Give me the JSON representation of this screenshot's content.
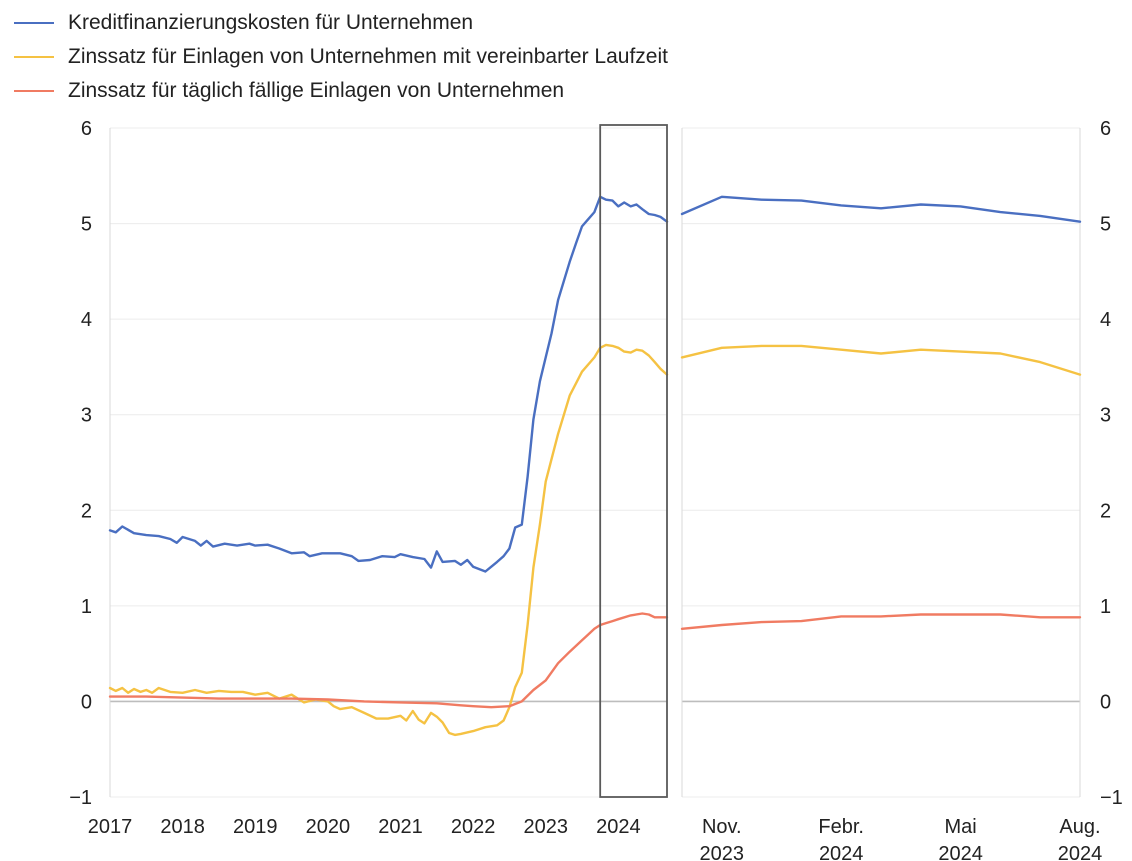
{
  "chart_data": [
    {
      "type": "line",
      "panel": "left",
      "x_unit": "year",
      "xlim": [
        2017,
        2024.67
      ],
      "ylim": [
        -1,
        6
      ],
      "y_ticks": [
        -1,
        0,
        1,
        2,
        3,
        4,
        5,
        6
      ],
      "y_tick_labels": [
        "−1",
        "0",
        "1",
        "2",
        "3",
        "4",
        "5",
        "6"
      ],
      "x_ticks": [
        2017,
        2018,
        2019,
        2020,
        2021,
        2022,
        2023,
        2024
      ],
      "x_tick_labels": [
        "2017",
        "2018",
        "2019",
        "2020",
        "2021",
        "2022",
        "2023",
        "2024"
      ],
      "grid": true,
      "highlight_box": {
        "x_from": 2023.75,
        "x_to": 2024.67
      },
      "series": [
        {
          "name": "Kreditfinanzierungskosten für Unternehmen",
          "color": "#4a6fc1",
          "points": [
            [
              2017.0,
              1.79
            ],
            [
              2017.08,
              1.77
            ],
            [
              2017.17,
              1.83
            ],
            [
              2017.33,
              1.76
            ],
            [
              2017.5,
              1.74
            ],
            [
              2017.67,
              1.73
            ],
            [
              2017.83,
              1.7
            ],
            [
              2017.92,
              1.66
            ],
            [
              2018.0,
              1.72
            ],
            [
              2018.17,
              1.68
            ],
            [
              2018.25,
              1.63
            ],
            [
              2018.33,
              1.68
            ],
            [
              2018.42,
              1.62
            ],
            [
              2018.58,
              1.65
            ],
            [
              2018.75,
              1.63
            ],
            [
              2018.92,
              1.65
            ],
            [
              2019.0,
              1.63
            ],
            [
              2019.17,
              1.64
            ],
            [
              2019.33,
              1.6
            ],
            [
              2019.5,
              1.55
            ],
            [
              2019.67,
              1.56
            ],
            [
              2019.75,
              1.52
            ],
            [
              2019.92,
              1.55
            ],
            [
              2020.17,
              1.55
            ],
            [
              2020.33,
              1.52
            ],
            [
              2020.42,
              1.47
            ],
            [
              2020.58,
              1.48
            ],
            [
              2020.75,
              1.52
            ],
            [
              2020.92,
              1.51
            ],
            [
              2021.0,
              1.54
            ],
            [
              2021.17,
              1.51
            ],
            [
              2021.33,
              1.49
            ],
            [
              2021.42,
              1.4
            ],
            [
              2021.5,
              1.57
            ],
            [
              2021.58,
              1.46
            ],
            [
              2021.75,
              1.47
            ],
            [
              2021.83,
              1.43
            ],
            [
              2021.92,
              1.48
            ],
            [
              2022.0,
              1.41
            ],
            [
              2022.17,
              1.36
            ],
            [
              2022.25,
              1.41
            ],
            [
              2022.33,
              1.46
            ],
            [
              2022.42,
              1.52
            ],
            [
              2022.5,
              1.6
            ],
            [
              2022.58,
              1.82
            ],
            [
              2022.67,
              1.85
            ],
            [
              2022.75,
              2.35
            ],
            [
              2022.83,
              2.95
            ],
            [
              2022.92,
              3.35
            ],
            [
              2023.0,
              3.6
            ],
            [
              2023.08,
              3.85
            ],
            [
              2023.17,
              4.2
            ],
            [
              2023.25,
              4.4
            ],
            [
              2023.33,
              4.6
            ],
            [
              2023.42,
              4.8
            ],
            [
              2023.5,
              4.97
            ],
            [
              2023.58,
              5.04
            ],
            [
              2023.67,
              5.12
            ],
            [
              2023.75,
              5.28
            ],
            [
              2023.83,
              5.25
            ],
            [
              2023.92,
              5.24
            ],
            [
              2024.0,
              5.18
            ],
            [
              2024.08,
              5.22
            ],
            [
              2024.17,
              5.18
            ],
            [
              2024.25,
              5.2
            ],
            [
              2024.33,
              5.15
            ],
            [
              2024.42,
              5.1
            ],
            [
              2024.5,
              5.09
            ],
            [
              2024.58,
              5.07
            ],
            [
              2024.67,
              5.02
            ]
          ]
        },
        {
          "name": "Zinssatz für Einlagen von Unternehmen mit vereinbarter Laufzeit",
          "color": "#f5c243",
          "points": [
            [
              2017.0,
              0.14
            ],
            [
              2017.08,
              0.11
            ],
            [
              2017.17,
              0.14
            ],
            [
              2017.25,
              0.09
            ],
            [
              2017.33,
              0.13
            ],
            [
              2017.42,
              0.1
            ],
            [
              2017.5,
              0.12
            ],
            [
              2017.58,
              0.09
            ],
            [
              2017.67,
              0.14
            ],
            [
              2017.83,
              0.1
            ],
            [
              2018.0,
              0.09
            ],
            [
              2018.17,
              0.12
            ],
            [
              2018.33,
              0.09
            ],
            [
              2018.5,
              0.11
            ],
            [
              2018.67,
              0.1
            ],
            [
              2018.83,
              0.1
            ],
            [
              2019.0,
              0.07
            ],
            [
              2019.17,
              0.09
            ],
            [
              2019.33,
              0.03
            ],
            [
              2019.5,
              0.07
            ],
            [
              2019.67,
              -0.01
            ],
            [
              2019.83,
              0.02
            ],
            [
              2020.0,
              0.0
            ],
            [
              2020.08,
              -0.05
            ],
            [
              2020.17,
              -0.08
            ],
            [
              2020.33,
              -0.06
            ],
            [
              2020.5,
              -0.12
            ],
            [
              2020.67,
              -0.18
            ],
            [
              2020.83,
              -0.18
            ],
            [
              2021.0,
              -0.15
            ],
            [
              2021.08,
              -0.2
            ],
            [
              2021.17,
              -0.1
            ],
            [
              2021.25,
              -0.19
            ],
            [
              2021.33,
              -0.23
            ],
            [
              2021.42,
              -0.12
            ],
            [
              2021.5,
              -0.16
            ],
            [
              2021.58,
              -0.22
            ],
            [
              2021.67,
              -0.33
            ],
            [
              2021.75,
              -0.35
            ],
            [
              2021.83,
              -0.34
            ],
            [
              2022.0,
              -0.31
            ],
            [
              2022.17,
              -0.27
            ],
            [
              2022.33,
              -0.25
            ],
            [
              2022.42,
              -0.2
            ],
            [
              2022.5,
              -0.06
            ],
            [
              2022.58,
              0.15
            ],
            [
              2022.67,
              0.3
            ],
            [
              2022.75,
              0.8
            ],
            [
              2022.83,
              1.4
            ],
            [
              2022.92,
              1.85
            ],
            [
              2023.0,
              2.3
            ],
            [
              2023.17,
              2.8
            ],
            [
              2023.33,
              3.2
            ],
            [
              2023.5,
              3.45
            ],
            [
              2023.67,
              3.6
            ],
            [
              2023.75,
              3.7
            ],
            [
              2023.83,
              3.73
            ],
            [
              2023.92,
              3.72
            ],
            [
              2024.0,
              3.7
            ],
            [
              2024.08,
              3.66
            ],
            [
              2024.17,
              3.65
            ],
            [
              2024.25,
              3.68
            ],
            [
              2024.33,
              3.67
            ],
            [
              2024.42,
              3.62
            ],
            [
              2024.5,
              3.55
            ],
            [
              2024.58,
              3.48
            ],
            [
              2024.67,
              3.42
            ]
          ]
        },
        {
          "name": "Zinssatz für täglich fällige Einlagen von Unternehmen",
          "color": "#f07b62",
          "points": [
            [
              2017.0,
              0.05
            ],
            [
              2017.5,
              0.05
            ],
            [
              2018.0,
              0.04
            ],
            [
              2018.5,
              0.03
            ],
            [
              2019.0,
              0.03
            ],
            [
              2019.5,
              0.03
            ],
            [
              2020.0,
              0.02
            ],
            [
              2020.5,
              0.0
            ],
            [
              2021.0,
              -0.01
            ],
            [
              2021.5,
              -0.02
            ],
            [
              2021.83,
              -0.04
            ],
            [
              2022.0,
              -0.05
            ],
            [
              2022.25,
              -0.06
            ],
            [
              2022.5,
              -0.05
            ],
            [
              2022.67,
              0.0
            ],
            [
              2022.83,
              0.12
            ],
            [
              2023.0,
              0.22
            ],
            [
              2023.17,
              0.4
            ],
            [
              2023.33,
              0.52
            ],
            [
              2023.5,
              0.64
            ],
            [
              2023.67,
              0.76
            ],
            [
              2023.75,
              0.8
            ],
            [
              2023.83,
              0.82
            ],
            [
              2023.92,
              0.84
            ],
            [
              2024.0,
              0.86
            ],
            [
              2024.17,
              0.9
            ],
            [
              2024.33,
              0.92
            ],
            [
              2024.42,
              0.91
            ],
            [
              2024.5,
              0.88
            ],
            [
              2024.67,
              0.88
            ]
          ]
        }
      ]
    },
    {
      "type": "line",
      "panel": "right",
      "x_unit": "months since Oct. 2023",
      "xlim": [
        0,
        10
      ],
      "ylim": [
        -1,
        6
      ],
      "y_ticks": [
        -1,
        0,
        1,
        2,
        3,
        4,
        5,
        6
      ],
      "y_tick_labels": [
        "−1",
        "0",
        "1",
        "2",
        "3",
        "4",
        "5",
        "6"
      ],
      "x_ticks": [
        1,
        4,
        7,
        10
      ],
      "x_tick_labels": [
        [
          "Nov.",
          "2023"
        ],
        [
          "Febr.",
          "2024"
        ],
        [
          "Mai",
          "2024"
        ],
        [
          "Aug.",
          "2024"
        ]
      ],
      "grid": true,
      "series": [
        {
          "name": "Kreditfinanzierungskosten für Unternehmen",
          "color": "#4a6fc1",
          "points": [
            [
              0,
              5.1
            ],
            [
              1,
              5.28
            ],
            [
              2,
              5.25
            ],
            [
              3,
              5.24
            ],
            [
              4,
              5.19
            ],
            [
              5,
              5.16
            ],
            [
              6,
              5.2
            ],
            [
              7,
              5.18
            ],
            [
              8,
              5.12
            ],
            [
              9,
              5.08
            ],
            [
              10,
              5.02
            ]
          ]
        },
        {
          "name": "Zinssatz für Einlagen von Unternehmen mit vereinbarter Laufzeit",
          "color": "#f5c243",
          "points": [
            [
              0,
              3.6
            ],
            [
              1,
              3.7
            ],
            [
              2,
              3.72
            ],
            [
              3,
              3.72
            ],
            [
              4,
              3.68
            ],
            [
              5,
              3.64
            ],
            [
              6,
              3.68
            ],
            [
              7,
              3.66
            ],
            [
              8,
              3.64
            ],
            [
              9,
              3.55
            ],
            [
              10,
              3.42
            ]
          ]
        },
        {
          "name": "Zinssatz für täglich fällige Einlagen von Unternehmen",
          "color": "#f07b62",
          "points": [
            [
              0,
              0.76
            ],
            [
              1,
              0.8
            ],
            [
              2,
              0.83
            ],
            [
              3,
              0.84
            ],
            [
              4,
              0.89
            ],
            [
              5,
              0.89
            ],
            [
              6,
              0.91
            ],
            [
              7,
              0.91
            ],
            [
              8,
              0.91
            ],
            [
              9,
              0.88
            ],
            [
              10,
              0.88
            ]
          ]
        }
      ]
    }
  ]
}
